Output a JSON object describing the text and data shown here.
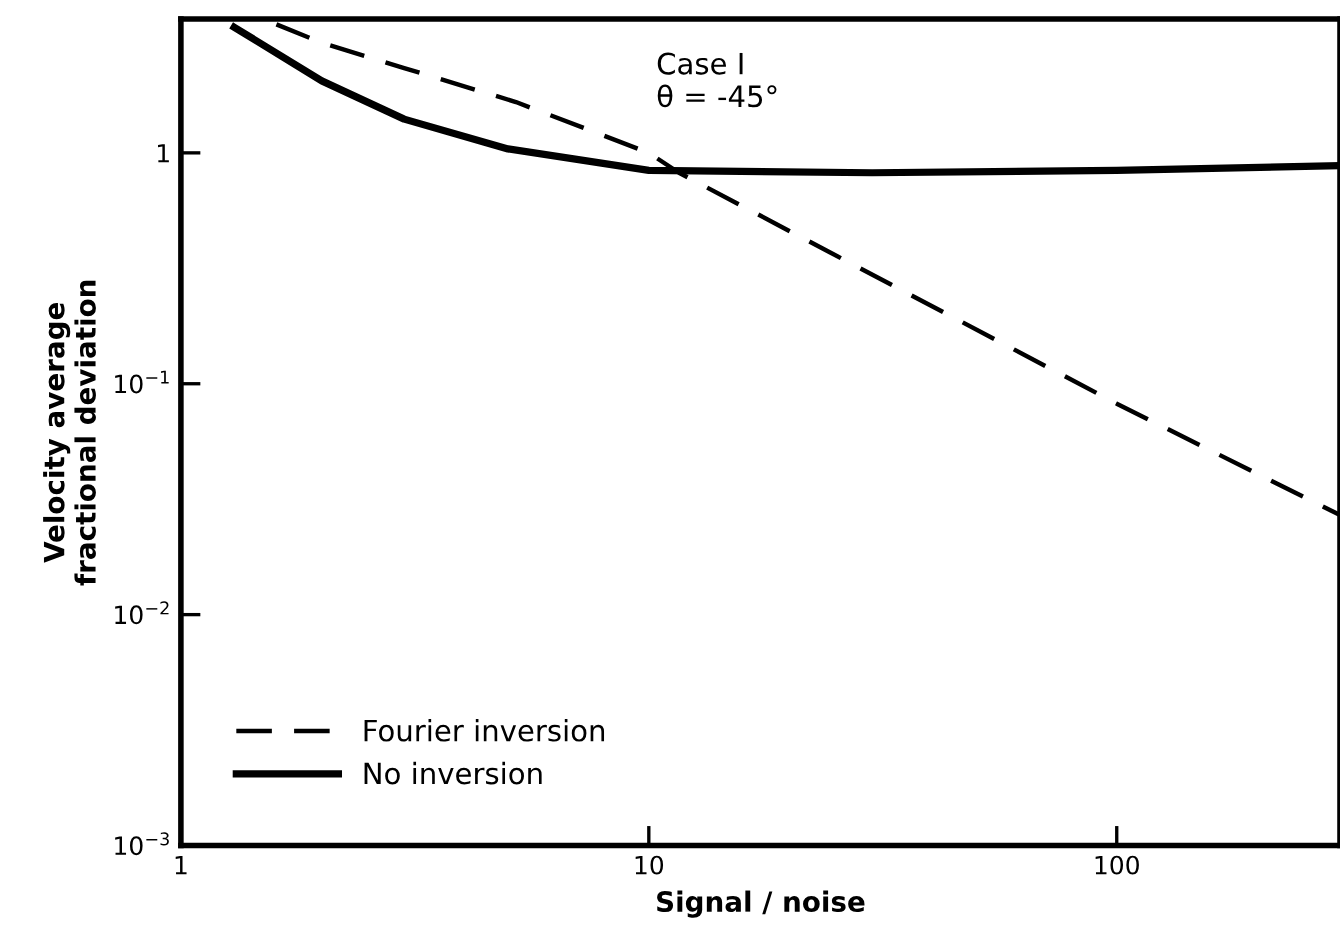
{
  "chart_data": {
    "type": "line",
    "xlabel": "Signal / noise",
    "ylabel": "Velocity average\nfractional deviation",
    "log": "xy",
    "xlim": [
      1,
      300
    ],
    "ylim": [
      0.001,
      3.8
    ],
    "xticks": [
      1,
      10,
      100
    ],
    "yticks": [
      {
        "value": 0.001,
        "label": "10$^{−3}$"
      },
      {
        "value": 0.01,
        "label": "10$^{−2}$"
      },
      {
        "value": 0.1,
        "label": "10$^{−1}$"
      },
      1
    ],
    "grid": false,
    "legend": "bottom left",
    "marker": "none",
    "annotations": [
      "Case I\nθ = -45°"
    ],
    "series": [
      {
        "name": "Fourier inversion",
        "color": "#000000",
        "line_style": "dashed",
        "x": [
          1.6,
          2,
          3,
          5.2,
          10,
          11.6,
          100,
          300
        ],
        "values": [
          3.6,
          3.0,
          2.33,
          1.66,
          1.0,
          0.82,
          0.082,
          0.027
        ]
      },
      {
        "name": "No inversion",
        "color": "#000000",
        "line_style": "solid",
        "x": [
          1.3,
          2,
          3,
          5,
          10,
          30,
          100,
          300
        ],
        "values": [
          3.5,
          2.05,
          1.4,
          1.04,
          0.84,
          0.82,
          0.84,
          0.88
        ]
      }
    ]
  }
}
